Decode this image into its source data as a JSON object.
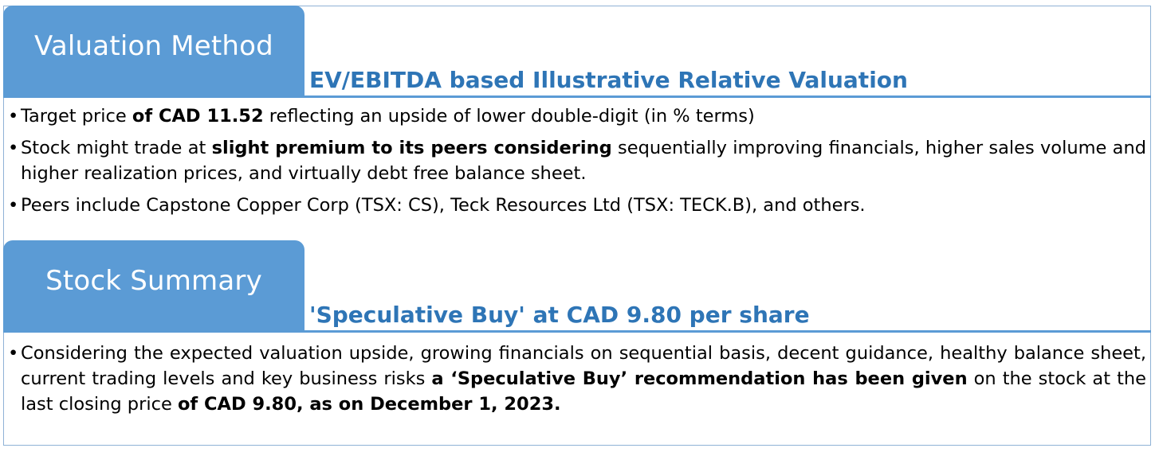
{
  "valuation": {
    "tab_label": "Valuation Method",
    "subtitle": "EV/EBITDA based Illustrative Relative Valuation",
    "bullets": {
      "b1": {
        "p1": "Target price ",
        "p2": "of CAD 11.52",
        "p3": " reflecting an upside of lower double-digit (in % terms)"
      },
      "b2": {
        "p1": "Stock might trade at ",
        "p2": "slight premium to its peers considering",
        "p3": " sequentially improving financials, higher sales volume  and higher realization prices, and virtually debt free balance sheet."
      },
      "b3": {
        "p1": "Peers include Capstone Copper Corp (TSX: CS), Teck Resources Ltd (TSX: TECK.B), and others."
      }
    }
  },
  "summary": {
    "tab_label": "Stock Summary",
    "subtitle": "'Speculative Buy' at CAD 9.80 per share",
    "bullets": {
      "b1": {
        "p1": "Considering the expected valuation upside, growing financials on sequential basis, decent guidance, healthy balance sheet, current trading levels and key business risks ",
        "p2": "a ‘Speculative Buy’ recommendation has been given",
        "p3": " on the stock at the last closing price ",
        "p4": "of CAD 9.80, as on December 1, 2023."
      }
    }
  },
  "colors": {
    "tab_bg": "#5b9bd5",
    "subtitle_text": "#2e75b6",
    "frame_border": "#8fb2d6"
  }
}
